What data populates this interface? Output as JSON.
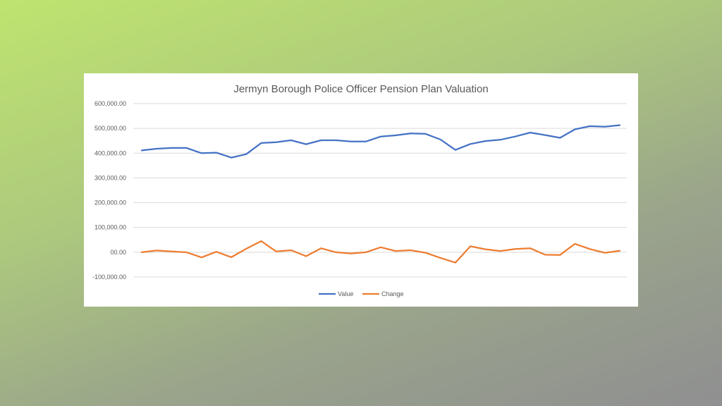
{
  "chart_data": {
    "type": "line",
    "title": "Jermyn Borough Police Officer Pension Plan Valuation",
    "xlabel": "",
    "ylabel": "",
    "ylim": [
      -100000,
      600000
    ],
    "yticks": [
      600000,
      500000,
      400000,
      300000,
      200000,
      100000,
      0,
      -100000
    ],
    "ytick_labels": [
      "600,000.00",
      "500,000.00",
      "400,000.00",
      "300,000.00",
      "200,000.00",
      "100,000.00",
      "00.00",
      "-100,000.00"
    ],
    "grid": true,
    "legend_position": "bottom",
    "x": [
      1,
      2,
      3,
      4,
      5,
      6,
      7,
      8,
      9,
      10,
      11,
      12,
      13,
      14,
      15,
      16,
      17,
      18,
      19,
      20,
      21,
      22,
      23,
      24,
      25,
      26,
      27,
      28,
      29,
      30,
      31,
      32,
      33
    ],
    "series": [
      {
        "name": "Value",
        "color": "#4472c4",
        "values": [
          411000,
          418000,
          421000,
          421000,
          400000,
          402000,
          382000,
          396000,
          441000,
          444000,
          452000,
          436000,
          452000,
          452000,
          447000,
          447000,
          467000,
          472000,
          480000,
          478000,
          455000,
          413000,
          437000,
          449000,
          454000,
          467000,
          483000,
          473000,
          462000,
          496000,
          509000,
          507000,
          513000
        ]
      },
      {
        "name": "Change",
        "color": "#ed7d31",
        "values": [
          0,
          7000,
          3000,
          0,
          -21000,
          2000,
          -20000,
          14000,
          45000,
          3000,
          8000,
          -16000,
          16000,
          0,
          -5000,
          0,
          20000,
          5000,
          8000,
          -2000,
          -23000,
          -42000,
          24000,
          12000,
          5000,
          13000,
          16000,
          -10000,
          -11000,
          34000,
          13000,
          -2000,
          6000
        ]
      }
    ]
  }
}
